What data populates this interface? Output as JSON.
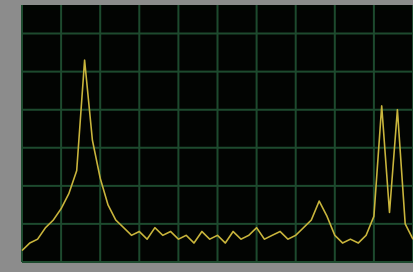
{
  "chart_data": {
    "type": "line",
    "x": [
      0,
      0.2,
      0.4,
      0.6,
      0.8,
      1.0,
      1.2,
      1.4,
      1.6,
      1.8,
      2.0,
      2.2,
      2.4,
      2.6,
      2.8,
      3.0,
      3.2,
      3.4,
      3.6,
      3.8,
      4.0,
      4.2,
      4.4,
      4.6,
      4.8,
      5.0,
      5.2,
      5.4,
      5.6,
      5.8,
      6.0,
      6.2,
      6.4,
      6.6,
      6.8,
      7.0,
      7.2,
      7.4,
      7.6,
      7.8,
      8.0,
      8.2,
      8.4,
      8.6,
      8.8,
      9.0,
      9.2,
      9.4,
      9.6,
      9.8,
      10.0
    ],
    "series": [
      {
        "color": "#c9b53c",
        "values": [
          0.3,
          0.5,
          0.6,
          0.9,
          1.1,
          1.4,
          1.8,
          2.4,
          5.3,
          3.2,
          2.2,
          1.5,
          1.1,
          0.9,
          0.7,
          0.8,
          0.6,
          0.9,
          0.7,
          0.8,
          0.6,
          0.7,
          0.5,
          0.8,
          0.6,
          0.7,
          0.5,
          0.8,
          0.6,
          0.7,
          0.9,
          0.6,
          0.7,
          0.8,
          0.6,
          0.7,
          0.9,
          1.1,
          1.6,
          1.2,
          0.7,
          0.5,
          0.6,
          0.5,
          0.7,
          1.2,
          4.1,
          1.3,
          4.0,
          1.0,
          0.6
        ]
      }
    ],
    "xlim": [
      0,
      10
    ],
    "ylim": [
      0,
      6.75
    ],
    "xticks": [
      0,
      1,
      2,
      3,
      4,
      5,
      6,
      7,
      8,
      9,
      10
    ],
    "yticks": [
      0,
      1,
      2,
      3,
      4,
      5,
      6
    ],
    "grid": true,
    "grid_color": "#1d4a2e",
    "background": "#020402"
  }
}
